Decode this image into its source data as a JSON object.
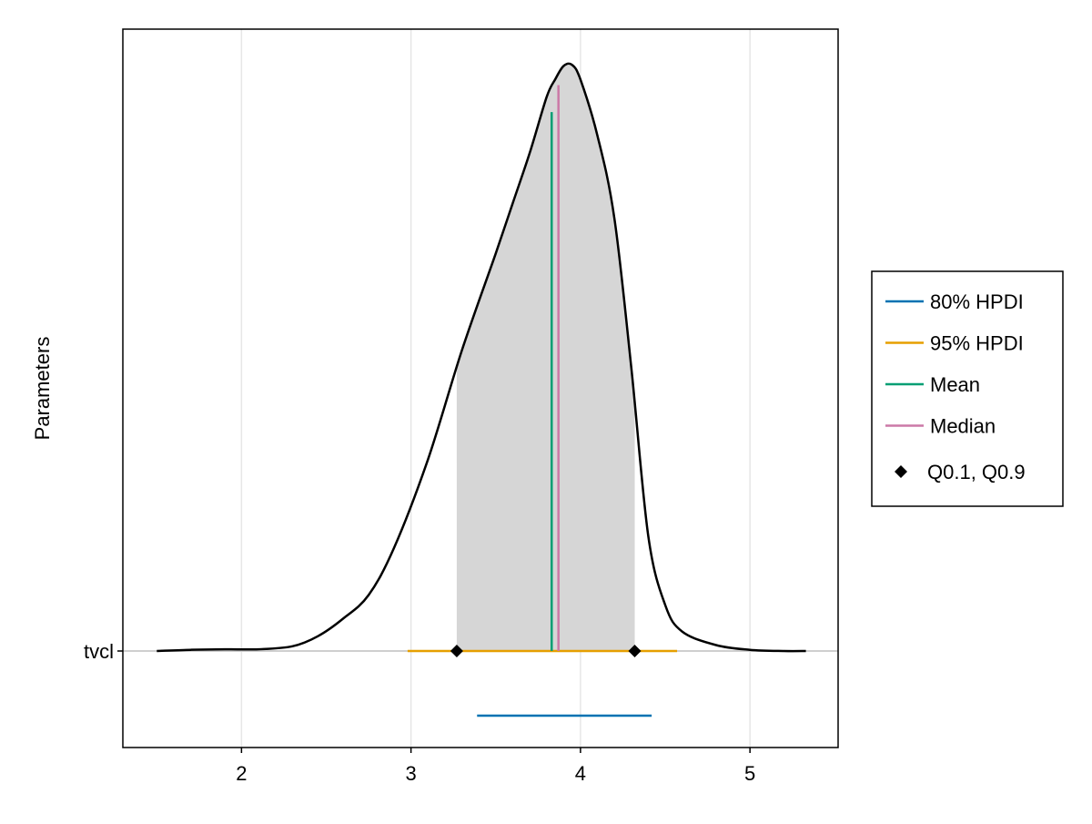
{
  "chart_data": {
    "type": "density",
    "ylabel": "Parameters",
    "xlabel": "",
    "xlim": [
      1.3,
      5.52
    ],
    "xticks": [
      2,
      3,
      4,
      5
    ],
    "parameter": "tvcl",
    "grid": true,
    "legend_position": "right",
    "density_curve": {
      "x": [
        1.5,
        1.7,
        1.9,
        2.1,
        2.3,
        2.45,
        2.6,
        2.75,
        2.9,
        3.1,
        3.3,
        3.5,
        3.6,
        3.7,
        3.8,
        3.85,
        3.9,
        3.95,
        4.0,
        4.1,
        4.2,
        4.3,
        4.4,
        4.5,
        4.6,
        4.8,
        5.0,
        5.2,
        5.33
      ],
      "y": [
        0.0,
        0.002,
        0.003,
        0.003,
        0.008,
        0.025,
        0.055,
        0.095,
        0.175,
        0.325,
        0.51,
        0.675,
        0.76,
        0.845,
        0.94,
        0.97,
        0.993,
        0.995,
        0.97,
        0.875,
        0.735,
        0.48,
        0.195,
        0.078,
        0.033,
        0.01,
        0.002,
        0.0,
        0.0
      ],
      "color": "#000000"
    },
    "shaded_region": {
      "from": 3.27,
      "to": 4.32,
      "color": "#d6d6d6"
    },
    "series": [
      {
        "name": "80% HPDI",
        "type": "interval",
        "low": 3.39,
        "high": 4.42,
        "color": "#0072b2"
      },
      {
        "name": "95% HPDI",
        "type": "interval",
        "low": 2.98,
        "high": 4.57,
        "color": "#e69f00"
      },
      {
        "name": "Mean",
        "type": "vline",
        "value": 3.83,
        "color": "#009e73"
      },
      {
        "name": "Median",
        "type": "vline",
        "value": 3.87,
        "color": "#cc79a7"
      },
      {
        "name": "Q0.1, Q0.9",
        "type": "points",
        "values": [
          3.27,
          4.32
        ],
        "color": "#000000"
      }
    ]
  }
}
